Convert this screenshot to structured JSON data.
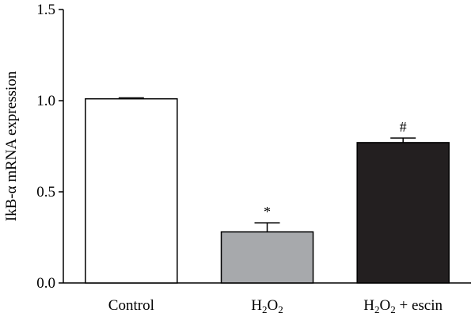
{
  "chart_data": {
    "type": "bar",
    "categories": [
      "Control",
      "H2O2",
      "H2O2 + escin"
    ],
    "category_labels": [
      {
        "parts": [
          {
            "t": "Control"
          }
        ]
      },
      {
        "parts": [
          {
            "t": "H"
          },
          {
            "t": "2",
            "sub": true
          },
          {
            "t": "O"
          },
          {
            "t": "2",
            "sub": true
          }
        ]
      },
      {
        "parts": [
          {
            "t": "H"
          },
          {
            "t": "2",
            "sub": true
          },
          {
            "t": "O"
          },
          {
            "t": "2",
            "sub": true
          },
          {
            "t": " + escin"
          }
        ]
      }
    ],
    "values": [
      1.01,
      0.28,
      0.77
    ],
    "errors": [
      0.005,
      0.05,
      0.025
    ],
    "significance": [
      "",
      "*",
      "#"
    ],
    "bar_colors": [
      "#ffffff",
      "#a7a9ac",
      "#231f20"
    ],
    "ylabel": "IkB-α mRNA expression",
    "xlabel": "",
    "ylim": [
      0,
      1.5
    ],
    "yticks": [
      0.0,
      0.5,
      1.0,
      1.5
    ],
    "ytick_labels": [
      "0.0",
      "0.5",
      "1.0",
      "1.5"
    ],
    "grid": false
  }
}
